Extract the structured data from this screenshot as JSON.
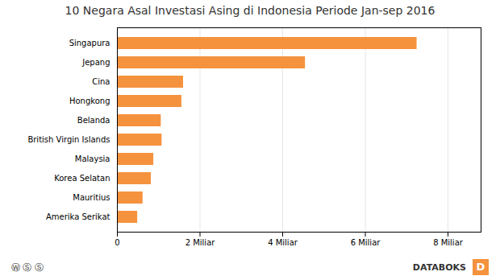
{
  "chart_data": {
    "type": "bar",
    "orientation": "horizontal",
    "title": "10 Negara Asal Investasi Asing di Indonesia Periode Jan-sep 2016",
    "categories": [
      "Singapura",
      "Jepang",
      "Cina",
      "Hongkong",
      "Belanda",
      "British Virgin Islands",
      "Malaysia",
      "Korea Selatan",
      "Mauritius",
      "Amerika Serikat"
    ],
    "values": [
      7.25,
      4.55,
      1.6,
      1.56,
      1.06,
      1.08,
      0.88,
      0.82,
      0.62,
      0.49
    ],
    "color": "#F5923E",
    "xlim": [
      0,
      8.8
    ],
    "xticks": [
      0,
      {
        "value": 2,
        "label": "2 Miliar"
      },
      {
        "value": 4,
        "label": "4 Miliar"
      },
      {
        "value": 6,
        "label": "6 Miliar"
      },
      {
        "value": 8,
        "label": "8 Miliar"
      }
    ],
    "grid": true,
    "annotations": [
      "Ⓦ Ⓢ Ⓢ",
      "DATABOKS",
      "D"
    ]
  }
}
